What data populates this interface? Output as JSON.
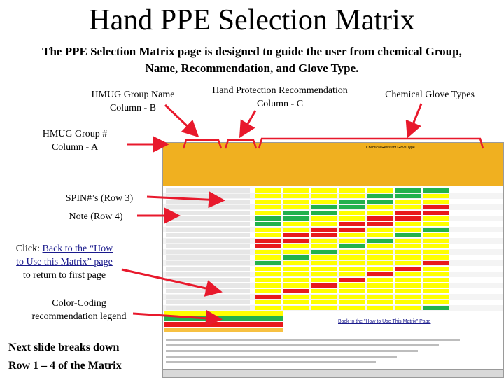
{
  "slide": {
    "title": "Hand PPE Selection Matrix",
    "subtitle_line1": "The PPE Selection Matrix page is designed to guide the user from chemical Group,",
    "subtitle_line2": "Name, Recommendation, and Glove Type."
  },
  "labels": {
    "group_name_line1": "HMUG Group Name",
    "group_name_line2": "Column - B",
    "recommendation_line1": "Hand Protection Recommendation",
    "recommendation_line2": "Column - C",
    "glove_types": "Chemical Glove Types",
    "group_number_line1": "HMUG Group #",
    "group_number_line2": "Column - A",
    "spin": "SPIN#’s (Row 3)",
    "note": "Note (Row 4)",
    "click_prefix": "Click: ",
    "back_link_line1": "Back to the “How",
    "back_link_line2": "to Use this Matrix” page",
    "return_text": "to return to first page",
    "legend_line1": "Color-Coding",
    "legend_line2": "recommendation legend",
    "next_line1": "Next slide breaks down",
    "next_line2": "Row 1 – 4 of the Matrix"
  },
  "sheet": {
    "glove_header": "Chemical Resistant Glove Type",
    "back_link": "Back to the \"How to Use This Matrix\" Page"
  },
  "colors": {
    "arrow": "#e8192c",
    "header_orange": "#f0b020",
    "yellow": "#ffff00",
    "green": "#22b14c",
    "red": "#e8191c",
    "orange_cell": "#f7c142"
  }
}
